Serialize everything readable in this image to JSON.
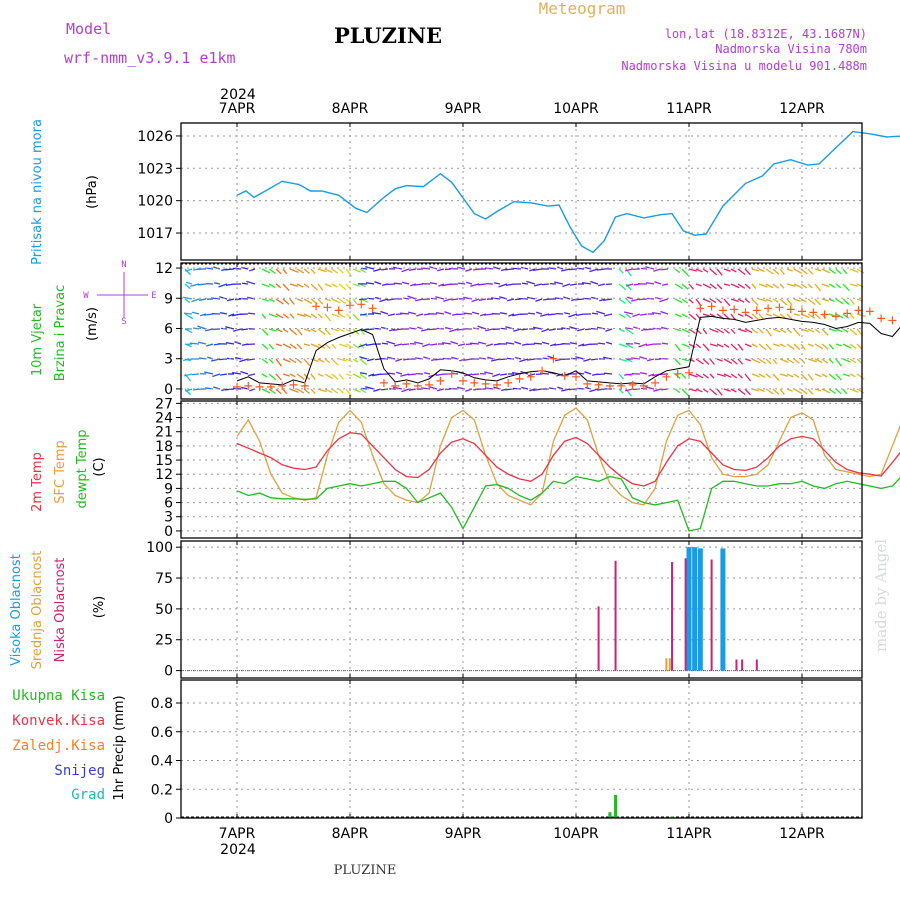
{
  "header": {
    "model_label": "Model",
    "model_name": "wrf-nmm_v3.9.1 e1km",
    "title": "PLUZINE",
    "meteogram_label": "Meteogram",
    "lonlat": "lon,lat (18.8312E, 43.1687N)",
    "elevation": "Nadmorska Visina 780m",
    "model_elevation": "Nadmorska Visina u modelu 901.488m",
    "year": "2024",
    "footer_title": "PLUZINE",
    "credit": "made by Angel"
  },
  "colors": {
    "pressure": "#1a9be6",
    "wind_speed": "#000000",
    "wind_gust": "#ff5a1e",
    "temp_2m": "#ee3344",
    "temp_sfc": "#e0a040",
    "dewpoint": "#22bb22",
    "cloud_high": "#1a9be6",
    "cloud_mid": "#e0a040",
    "cloud_low": "#cc2277",
    "precip_total": "#22bb22",
    "precip_conv": "#ee3344",
    "precip_frozen": "#ff7f27",
    "precip_snow": "#3a3ad8",
    "precip_graupel": "#22bbaa"
  },
  "chart_data": [
    {
      "type": "line",
      "panel": "pressure",
      "ylabel": [
        "Pritisak na nivou mora",
        "(hPa)"
      ],
      "yticks": [
        1017,
        1020,
        1023,
        1026
      ],
      "ylim": [
        1014.5,
        1027.2
      ],
      "xlim": [
        0,
        6.05
      ],
      "xtick_labels": [
        "7APR",
        "8APR",
        "9APR",
        "10APR",
        "11APR",
        "12APR"
      ],
      "x": [
        0,
        0.08,
        0.15,
        0.25,
        0.4,
        0.55,
        0.65,
        0.75,
        0.9,
        1.05,
        1.15,
        1.3,
        1.4,
        1.5,
        1.65,
        1.8,
        1.9,
        2.1,
        2.2,
        2.3,
        2.45,
        2.6,
        2.75,
        2.85,
        2.95,
        3.05,
        3.15,
        3.25,
        3.35,
        3.45,
        3.6,
        3.75,
        3.85,
        3.95,
        4.05,
        4.15,
        4.3,
        4.5,
        4.65,
        4.75,
        4.9,
        5.05,
        5.15,
        5.3,
        5.45,
        5.6,
        5.75,
        5.9,
        6.05
      ],
      "series": [
        {
          "values": [
            1020.5,
            1020.9,
            1020.3,
            1020.9,
            1021.8,
            1021.5,
            1020.9,
            1020.9,
            1020.5,
            1019.3,
            1018.9,
            1020.3,
            1021.1,
            1021.4,
            1021.3,
            1022.5,
            1021.7,
            1018.8,
            1018.3,
            1019.0,
            1019.9,
            1019.8,
            1019.5,
            1019.6,
            1017.5,
            1015.8,
            1015.2,
            1016.3,
            1018.5,
            1018.8,
            1018.4,
            1018.7,
            1018.8,
            1017.2,
            1016.8,
            1016.9,
            1019.5,
            1021.6,
            1022.3,
            1023.4,
            1023.8,
            1023.3,
            1023.4,
            1024.9,
            1026.4,
            1026.2,
            1025.9,
            1026.0,
            1024.9
          ]
        }
      ]
    },
    {
      "type": "line",
      "panel": "wind",
      "ylabel": [
        "10m Vjetar",
        "Brzina i Pravac",
        "(m/s)"
      ],
      "direction_legend": [
        "W",
        "E",
        "N",
        "S"
      ],
      "yticks": [
        0,
        3,
        6,
        9,
        12
      ],
      "ylim": [
        -1,
        12.5
      ],
      "x": [
        0,
        0.1,
        0.2,
        0.3,
        0.4,
        0.5,
        0.6,
        0.7,
        0.8,
        0.9,
        1.0,
        1.1,
        1.2,
        1.3,
        1.4,
        1.5,
        1.6,
        1.7,
        1.8,
        1.9,
        2.0,
        2.1,
        2.2,
        2.3,
        2.4,
        2.5,
        2.6,
        2.7,
        2.8,
        2.9,
        3.0,
        3.1,
        3.2,
        3.3,
        3.4,
        3.5,
        3.6,
        3.7,
        3.8,
        3.9,
        4.0,
        4.1,
        4.2,
        4.3,
        4.4,
        4.5,
        4.6,
        4.7,
        4.8,
        4.9,
        5.0,
        5.1,
        5.2,
        5.3,
        5.4,
        5.5,
        5.6,
        5.7,
        5.8,
        5.9,
        6.0
      ],
      "series": [
        {
          "values": [
            0.8,
            1.2,
            0.6,
            0.5,
            0.4,
            0.9,
            0.6,
            3.8,
            4.6,
            5.1,
            5.5,
            5.9,
            5.4,
            2.0,
            0.7,
            0.9,
            0.6,
            1.0,
            1.9,
            1.8,
            1.6,
            1.1,
            0.9,
            0.8,
            1.2,
            1.5,
            1.7,
            1.8,
            1.6,
            1.3,
            1.8,
            0.8,
            0.7,
            0.6,
            0.5,
            0.6,
            0.5,
            1.2,
            1.8,
            2.0,
            2.2,
            7.1,
            7.2,
            7.0,
            6.9,
            6.6,
            6.8,
            7.0,
            7.1,
            6.9,
            6.7,
            6.6,
            6.4,
            6.0,
            6.2,
            6.6,
            6.5,
            5.5,
            5.2,
            6.5,
            6.2
          ]
        },
        {
          "values": [
            0.2,
            0.3,
            0.2,
            0.2,
            0.3,
            0.4,
            0.3,
            8.2,
            8.1,
            7.8,
            8.3,
            8.4,
            8.0,
            0.6,
            0.3,
            0.5,
            0.3,
            0.4,
            0.8,
            1.5,
            0.8,
            0.6,
            0.5,
            0.4,
            0.6,
            1.0,
            1.2,
            1.8,
            3.0,
            1.3,
            1.2,
            0.5,
            0.4,
            0.3,
            0.3,
            0.4,
            0.3,
            0.6,
            1.2,
            1.5,
            1.6,
            8.0,
            8.2,
            7.8,
            7.9,
            7.6,
            7.8,
            8.0,
            8.1,
            7.9,
            7.7,
            7.6,
            7.4,
            7.2,
            7.5,
            7.8,
            7.7,
            7.0,
            6.8,
            7.5,
            7.2
          ]
        }
      ]
    },
    {
      "type": "line",
      "panel": "temperature",
      "ylabel": [
        "2m Temp",
        "SFC Temp",
        "dewpt Temp",
        "(C)"
      ],
      "yticks": [
        0,
        3,
        6,
        9,
        12,
        15,
        18,
        21,
        24,
        27
      ],
      "ylim": [
        -1.5,
        27.5
      ],
      "x": [
        0,
        0.1,
        0.2,
        0.3,
        0.4,
        0.5,
        0.6,
        0.7,
        0.8,
        0.9,
        1.0,
        1.1,
        1.2,
        1.3,
        1.4,
        1.5,
        1.6,
        1.7,
        1.8,
        1.9,
        2.0,
        2.1,
        2.2,
        2.3,
        2.4,
        2.5,
        2.6,
        2.7,
        2.8,
        2.9,
        3.0,
        3.1,
        3.2,
        3.3,
        3.4,
        3.5,
        3.6,
        3.7,
        3.8,
        3.9,
        4.0,
        4.1,
        4.2,
        4.3,
        4.4,
        4.5,
        4.6,
        4.7,
        4.8,
        4.9,
        5.0,
        5.1,
        5.2,
        5.3,
        5.4,
        5.5,
        5.6,
        5.7,
        5.8,
        5.9,
        6.0
      ],
      "series": [
        {
          "values": [
            18.5,
            17.5,
            16.5,
            15.5,
            14.0,
            13.3,
            13.0,
            13.5,
            17.0,
            19.5,
            20.8,
            20.5,
            18.0,
            15.5,
            13.0,
            11.5,
            11.3,
            13.0,
            16.5,
            18.8,
            19.5,
            18.5,
            16.0,
            13.5,
            12.0,
            11.0,
            10.5,
            12.0,
            16.0,
            19.0,
            19.8,
            18.5,
            16.0,
            13.5,
            11.5,
            10.0,
            9.5,
            10.5,
            14.5,
            18.0,
            19.5,
            19.0,
            16.5,
            14.0,
            13.0,
            12.8,
            13.5,
            15.5,
            18.0,
            19.5,
            20.0,
            19.5,
            17.0,
            14.5,
            13.0,
            12.3,
            12.0,
            11.6,
            14.5,
            17.5,
            18.8
          ]
        },
        {
          "values": [
            20.0,
            23.5,
            19.0,
            12.0,
            8.0,
            7.0,
            6.5,
            7.0,
            16.0,
            23.0,
            25.5,
            23.0,
            16.0,
            10.0,
            7.5,
            6.5,
            6.0,
            8.0,
            18.0,
            24.0,
            25.5,
            23.5,
            16.0,
            10.0,
            7.5,
            6.5,
            5.5,
            8.0,
            19.0,
            24.5,
            26.0,
            23.5,
            16.0,
            10.0,
            7.5,
            6.0,
            5.5,
            9.0,
            19.0,
            24.5,
            25.5,
            22.5,
            15.5,
            12.0,
            11.5,
            11.5,
            12.0,
            14.0,
            19.0,
            24.0,
            25.0,
            23.5,
            16.0,
            13.0,
            12.5,
            12.0,
            11.5,
            12.0,
            18.0,
            24.0,
            25.0
          ]
        },
        {
          "values": [
            8.5,
            7.5,
            8.0,
            7.0,
            6.8,
            6.8,
            6.7,
            6.8,
            9.0,
            9.5,
            10.0,
            9.5,
            10.0,
            10.5,
            10.5,
            9.0,
            6.0,
            7.0,
            8.0,
            5.0,
            0.5,
            5.0,
            9.5,
            9.8,
            9.0,
            7.5,
            6.5,
            8.0,
            10.5,
            10.0,
            11.5,
            11.0,
            10.5,
            11.5,
            11.0,
            7.0,
            6.0,
            5.5,
            6.0,
            6.5,
            0.0,
            0.5,
            9.0,
            10.5,
            10.5,
            10.0,
            9.5,
            9.5,
            10.0,
            10.0,
            10.5,
            9.5,
            9.0,
            10.0,
            10.5,
            10.0,
            9.5,
            9.0,
            9.5,
            12.0,
            10.5
          ]
        }
      ]
    },
    {
      "type": "bar",
      "panel": "cloud",
      "ylabel": [
        "Visoka Oblacnost",
        "Srednja Oblacnost",
        "Niska Oblacnost",
        "(%)"
      ],
      "yticks": [
        0,
        25,
        50,
        75,
        100
      ],
      "ylim": [
        -6,
        105
      ],
      "series": [
        {
          "x": [
            4.0,
            4.05,
            4.1,
            4.3
          ],
          "values": [
            100,
            100,
            99,
            99
          ]
        },
        {
          "x": [
            3.8,
            3.83,
            4.3
          ],
          "values": [
            10,
            10,
            5
          ]
        },
        {
          "x": [
            3.2,
            3.35,
            4.2,
            3.85,
            3.97,
            4.42,
            4.47,
            4.6
          ],
          "values": [
            52,
            89,
            90,
            88,
            91,
            9,
            9,
            9
          ]
        }
      ]
    },
    {
      "type": "bar",
      "panel": "precipitation",
      "ylabel": [
        "1hr Precip (mm)"
      ],
      "legend": [
        "Ukupna Kisa",
        "Konvek.Kisa",
        "Zaledj.Kisa",
        "Snijeg",
        "Grad"
      ],
      "yticks": [
        0,
        0.2,
        0.4,
        0.6,
        0.8
      ],
      "ylim": [
        0,
        0.96
      ],
      "series": [
        {
          "x": [
            3.3,
            3.35,
            3.85
          ],
          "values": [
            0.04,
            0.16,
            0.01
          ]
        }
      ]
    }
  ]
}
